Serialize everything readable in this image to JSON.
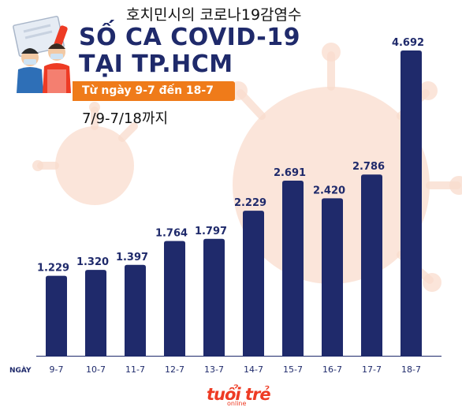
{
  "header": {
    "korean_title": "호치민시의 코로나19감염수",
    "title_line1": "SỐ CA COVID-19",
    "title_line2": "TẠI TP.HCM",
    "date_range": "Từ ngày 9-7 đến 18-7",
    "korean_subtitle": "7/9-7/18까지"
  },
  "logo": {
    "main": "tuổi trẻ",
    "sub": "online"
  },
  "colors": {
    "bar": "#1f2a6b",
    "accent": "#ef7b1a",
    "title": "#1f2a6b",
    "logo": "#ee3b24"
  },
  "chart_data": {
    "type": "bar",
    "title": "SỐ CA COVID-19 TẠI TP.HCM",
    "xlabel": "NGÀY",
    "ylabel": "",
    "categories": [
      "9-7",
      "10-7",
      "11-7",
      "12-7",
      "13-7",
      "14-7",
      "15-7",
      "16-7",
      "17-7",
      "18-7"
    ],
    "values": [
      1229,
      1320,
      1397,
      1764,
      1797,
      2229,
      2691,
      2420,
      2786,
      4692
    ],
    "value_labels": [
      "1.229",
      "1.320",
      "1.397",
      "1.764",
      "1.797",
      "2.229",
      "2.691",
      "2.420",
      "2.786",
      "4.692"
    ],
    "ylim": [
      0,
      4692
    ],
    "grid": false,
    "legend": "none"
  }
}
